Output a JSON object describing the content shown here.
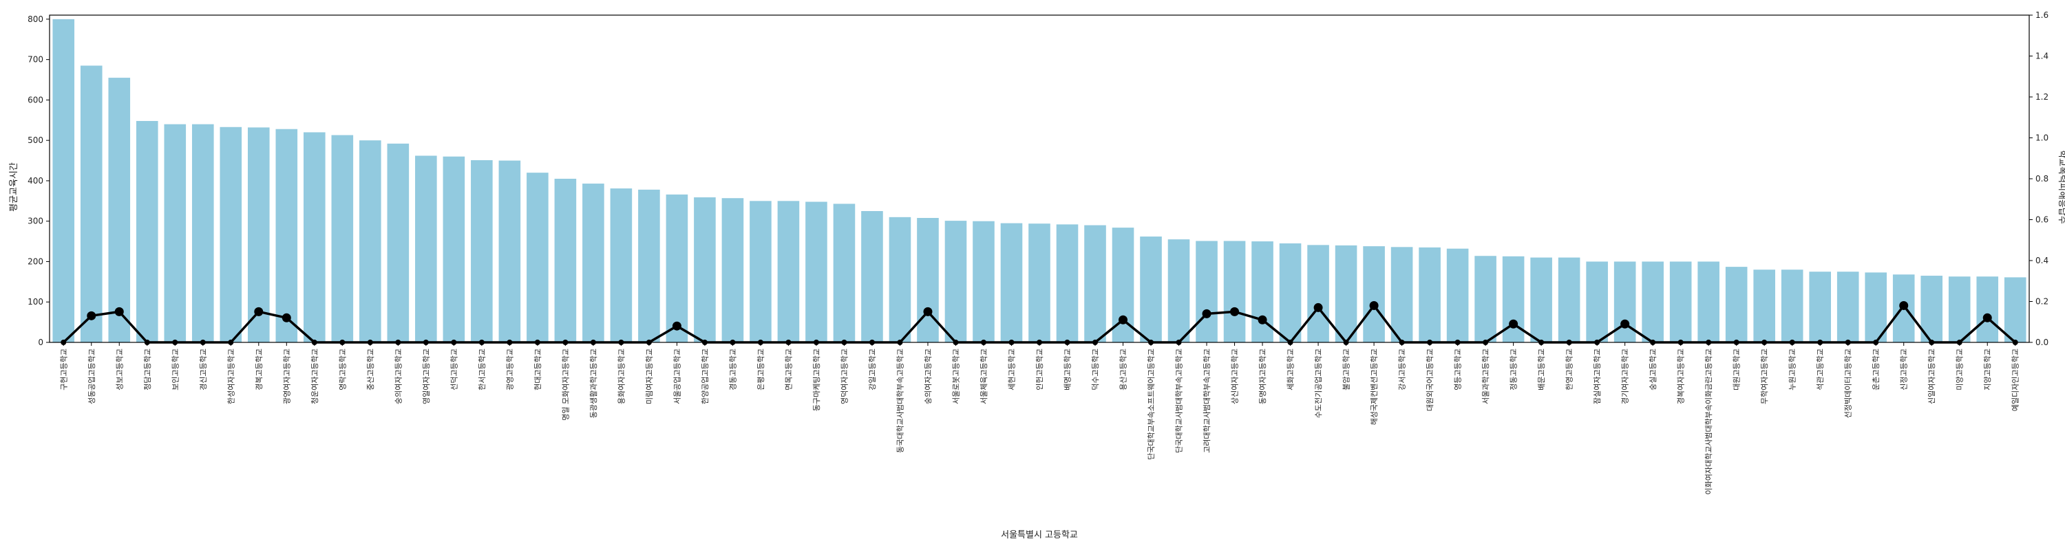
{
  "chart_data": {
    "type": "bar",
    "xlabel": "서울특별시 고등학교",
    "ylabel_left": "평균교육시간",
    "ylabel_right": "학교폭력피해응답수",
    "ylim_left": [
      0,
      810
    ],
    "ylim_right": [
      0,
      1.6
    ],
    "yticks_left": [
      0,
      100,
      200,
      300,
      400,
      500,
      600,
      700,
      800
    ],
    "yticks_right": [
      0.0,
      0.2,
      0.4,
      0.6,
      0.8,
      1.0,
      1.2,
      1.4,
      1.6
    ],
    "grid": false,
    "colors": {
      "bar": "#92cadf",
      "line": "#000000",
      "axis": "#000000"
    },
    "categories": [
      "구현고등학교",
      "성동공업고등학교",
      "성보고등학교",
      "청담고등학교",
      "보인고등학교",
      "경신고등학교",
      "한성여자고등학교",
      "경복고등학교",
      "광영여자고등학교",
      "청운여자고등학교",
      "영락고등학교",
      "중산고등학교",
      "숭의여자고등학교",
      "영일여자고등학교",
      "선덕고등학교",
      "한서고등학교",
      "광영고등학교",
      "현대고등학교",
      "명일 모화여자고등학교",
      "동광생활과학고등학교",
      "용화여자고등학교",
      "미림여자고등학교",
      "서울공업고등학교",
      "한양공업고등학교",
      "경동고등학교",
      "은평고등학교",
      "면목고등학교",
      "동구마케팅고등학교",
      "영덕여자고등학교",
      "강일고등학교",
      "동국대학교사범대학부속고등학교",
      "숭의여자고등학교",
      "서울로봇고등학교",
      "서울체육고등학교",
      "세현고등학교",
      "인헌고등학교",
      "배명고등학교",
      "덕수고등학교",
      "용산고등학교",
      "단국대학교부속소프트웨어고등학교",
      "단국대학교사범대학부속고등학교",
      "고려대학교사범대학부속고등학교",
      "상신여자고등학교",
      "동명여자고등학교",
      "세화고등학교",
      "수도전기공업고등학교",
      "불암고등학교",
      "해성국제컨벤션고등학교",
      "강서고등학교",
      "대원외국어고등학교",
      "영등고등학교",
      "서울과학고등학교",
      "정동고등학교",
      "배문고등학교",
      "한영고등학교",
      "잠실여자고등학교",
      "경기여자고등학교",
      "숭실고등학교",
      "경복여자고등학교",
      "이화여자대학교사범대학부속이화금란고등학교",
      "대원고등학교",
      "무학여자고등학교",
      "누원고등학교",
      "석관고등학교",
      "선정빅데이터고등학교",
      "운촌고등학교",
      "신정고등학교",
      "신일여자고등학교",
      "미양고등학교",
      "지양고등학교",
      "예일디자인고등학교"
    ],
    "series": [
      {
        "axis": "left",
        "type": "bar",
        "values": [
          800,
          685,
          655,
          548,
          540,
          540,
          533,
          532,
          528,
          520,
          513,
          500,
          492,
          462,
          460,
          451,
          450,
          420,
          405,
          393,
          381,
          378,
          366,
          359,
          357,
          350,
          350,
          348,
          343,
          325,
          310,
          308,
          301,
          300,
          295,
          294,
          292,
          290,
          284,
          262,
          255,
          251,
          251,
          250,
          245,
          241,
          240,
          238,
          236,
          235,
          232,
          214,
          213,
          210,
          210,
          200,
          200,
          200,
          200,
          200,
          187,
          180,
          180,
          175,
          175,
          173,
          168,
          165,
          163,
          163,
          161
        ]
      },
      {
        "axis": "right",
        "type": "line",
        "values": [
          0,
          0.13,
          0.15,
          0,
          0,
          0,
          0,
          0.15,
          0.12,
          0,
          0,
          0,
          0,
          0,
          0,
          0,
          0,
          0,
          0,
          0,
          0,
          0,
          0.08,
          0,
          0,
          0,
          0,
          0,
          0,
          0,
          0,
          0.15,
          0,
          0,
          0,
          0,
          0,
          0,
          0.11,
          0,
          0,
          0.14,
          0.15,
          0.11,
          0,
          0.17,
          0,
          0.18,
          0,
          0,
          0,
          0,
          0.09,
          0,
          0,
          0,
          0.09,
          0,
          0,
          0,
          0,
          0,
          0,
          0,
          0,
          0,
          0.18,
          0,
          0,
          0.12,
          0
        ]
      }
    ]
  }
}
